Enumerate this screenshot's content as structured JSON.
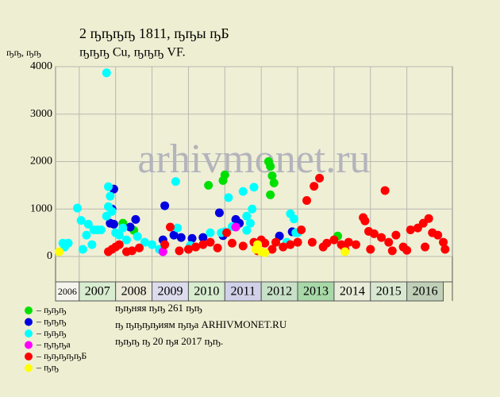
{
  "chart_data": {
    "type": "scatter",
    "title": "2 ҧҧҧҧ 1811, ҧҧы ҧБ",
    "subtitle": "ҧҧҧ Cu, ҧҧҧ VF.",
    "y_label": "ҧҧ, ҧҧ",
    "watermark": "arhivmonet.ru",
    "notes": [
      "ҧҧняя ҧҧ 261 ҧҧ",
      "ҧ ҧҧҧҧиям ҧҧа ARHIVMONET.RU",
      "ҧҧҧ ҧ 20 ҧя 2017 ҧҧ."
    ],
    "xlim": [
      2006.35,
      2017.25
    ],
    "xticks": [
      2006,
      2007,
      2008,
      2009,
      2010,
      2011,
      2012,
      2013,
      2014,
      2015,
      2016
    ],
    "x_band_colors": [
      "#f4f4ec",
      "#d8ecd0",
      "#ecead8",
      "#dcdcec",
      "#d8ecd0",
      "#d0d0e8",
      "#c8e0c8",
      "#a8d8a8",
      "#e8ecd8",
      "#d8e8d0",
      "#c0d0b8"
    ],
    "ylim": [
      0,
      4000
    ],
    "yticks": [
      0,
      1000,
      2000,
      3000,
      4000
    ],
    "grid": true,
    "series": [
      {
        "name": "– ҧҧҧ",
        "color": "#00e000",
        "x": [
          2008.2,
          2012.2,
          2012.25,
          2012.3,
          2012.35,
          2012.25,
          2010.55,
          2010.95,
          2011.0,
          2014.1,
          2008.5
        ],
        "values": [
          700,
          2000,
          1900,
          1700,
          1550,
          1300,
          1500,
          1600,
          1720,
          430,
          550
        ]
      },
      {
        "name": "– ҧҧҧ",
        "color": "#0000e0",
        "x": [
          2007.95,
          2007.9,
          2007.85,
          2007.95,
          2008.4,
          2008.55,
          2009.35,
          2009.6,
          2009.8,
          2010.1,
          2010.4,
          2010.85,
          2010.95,
          2011.3,
          2011.4,
          2012.5,
          2012.85,
          2009.3
        ],
        "values": [
          1420,
          1000,
          700,
          680,
          620,
          780,
          1070,
          450,
          400,
          380,
          400,
          920,
          440,
          780,
          700,
          430,
          520,
          350
        ]
      },
      {
        "name": "– ҧҧҧ",
        "color": "#00ffff",
        "x": [
          2007.75,
          2007.8,
          2007.85,
          2007.75,
          2007.8,
          2006.55,
          2006.6,
          2006.7,
          2006.95,
          2007.05,
          2007.2,
          2007.25,
          2007.4,
          2007.5,
          2007.6,
          2007.35,
          2007.1,
          2008.0,
          2008.1,
          2008.3,
          2008.6,
          2008.8,
          2009.0,
          2009.2,
          2009.65,
          2009.7,
          2010.05,
          2010.6,
          2010.9,
          2011.0,
          2011.1,
          2011.2,
          2011.5,
          2011.6,
          2011.7,
          2011.8,
          2011.75,
          2011.6,
          2012.8,
          2012.9,
          2012.95,
          2013.0,
          2012.7,
          2007.9,
          2008.2
        ],
        "values": [
          3870,
          1470,
          1270,
          850,
          1050,
          280,
          200,
          280,
          1020,
          760,
          450,
          680,
          560,
          560,
          560,
          250,
          150,
          500,
          450,
          350,
          420,
          300,
          250,
          150,
          1580,
          600,
          230,
          500,
          500,
          520,
          1240,
          630,
          1370,
          850,
          700,
          1460,
          1000,
          550,
          900,
          790,
          500,
          500,
          300,
          950,
          600
        ]
      },
      {
        "name": "– ҧҧҧа",
        "color": "#ff00ff",
        "x": [
          2009.3,
          2011.3
        ],
        "values": [
          100,
          620
        ]
      },
      {
        "name": "– ҧҧҧҧҧБ",
        "color": "#ff0000",
        "x": [
          2007.8,
          2007.9,
          2008.0,
          2008.1,
          2008.3,
          2008.45,
          2008.65,
          2009.35,
          2009.5,
          2009.75,
          2010.0,
          2010.2,
          2010.4,
          2010.6,
          2010.8,
          2011.05,
          2011.2,
          2011.5,
          2011.8,
          2012.0,
          2012.1,
          2012.4,
          2012.6,
          2012.8,
          2013.0,
          2013.1,
          2013.25,
          2013.45,
          2013.6,
          2013.4,
          2013.8,
          2014.0,
          2014.2,
          2014.4,
          2014.6,
          2014.8,
          2014.85,
          2014.95,
          2015.1,
          2015.3,
          2015.4,
          2015.5,
          2015.7,
          2015.9,
          2016.1,
          2016.3,
          2016.45,
          2016.6,
          2016.7,
          2016.85,
          2017.0,
          2017.05,
          2014.3,
          2015.0,
          2015.6,
          2016.0,
          2016.5,
          2012.3,
          2011.9,
          2013.7
        ],
        "values": [
          100,
          150,
          200,
          250,
          100,
          120,
          180,
          250,
          620,
          120,
          150,
          200,
          250,
          300,
          180,
          500,
          280,
          220,
          300,
          350,
          280,
          300,
          200,
          250,
          300,
          560,
          1180,
          1480,
          1650,
          300,
          280,
          350,
          250,
          300,
          250,
          820,
          750,
          530,
          480,
          400,
          1390,
          300,
          450,
          200,
          560,
          600,
          700,
          800,
          500,
          450,
          300,
          150,
          150,
          150,
          120,
          130,
          200,
          150,
          120,
          200
        ]
      },
      {
        "name": "– ҧҧ",
        "color": "#ffff00",
        "x": [
          2006.45,
          2011.85,
          2011.9,
          2012.0,
          2012.1,
          2014.3
        ],
        "values": [
          100,
          150,
          250,
          100,
          80,
          100
        ]
      }
    ]
  }
}
